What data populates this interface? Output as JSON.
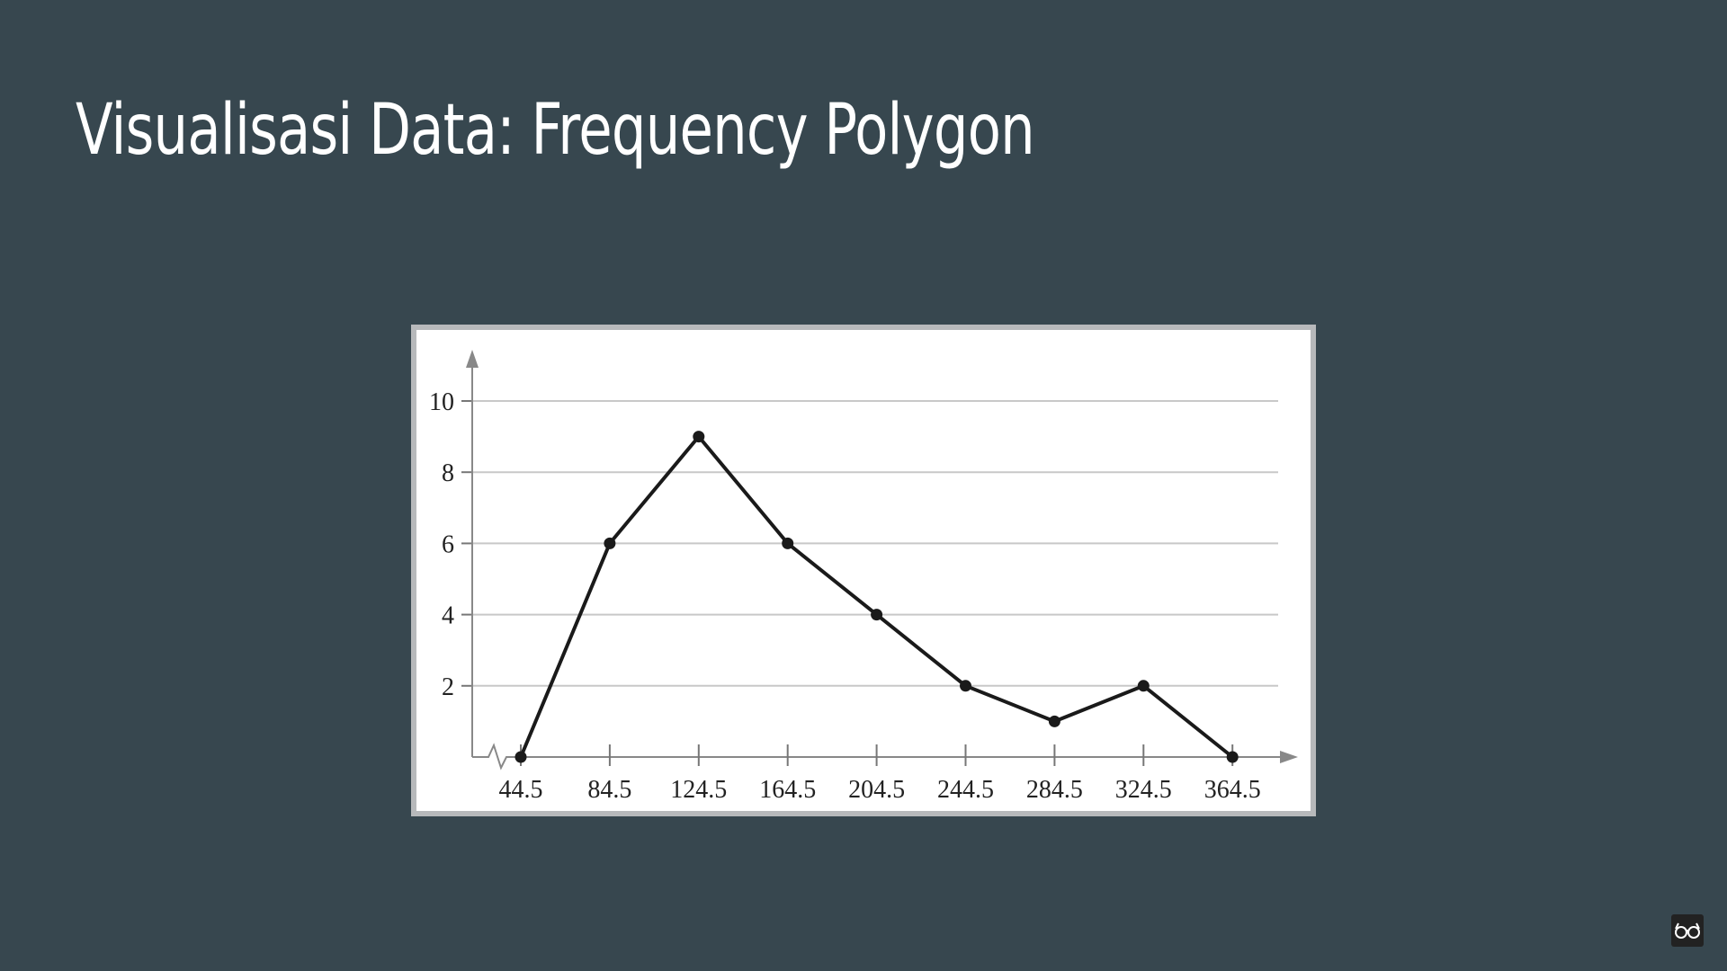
{
  "slide": {
    "title": "Visualisasi Data: Frequency Polygon",
    "background": "#37474f",
    "corner_icon": "glasses-icon"
  },
  "chart_data": {
    "type": "line",
    "title": "",
    "xlabel": "",
    "ylabel": "",
    "x": [
      44.5,
      84.5,
      124.5,
      164.5,
      204.5,
      244.5,
      284.5,
      324.5,
      364.5
    ],
    "series": [
      {
        "values": [
          0,
          6,
          9,
          6,
          4,
          2,
          1,
          2,
          0
        ]
      }
    ],
    "xticks": [
      "44.5",
      "84.5",
      "124.5",
      "164.5",
      "204.5",
      "244.5",
      "284.5",
      "324.5",
      "364.5"
    ],
    "yticks": [
      "2",
      "4",
      "6",
      "8",
      "10"
    ],
    "ylim": [
      0,
      10
    ],
    "grid": true,
    "axis_break": "x",
    "line_color": "#1a1a1a",
    "grid_color": "#c8c8c8"
  }
}
